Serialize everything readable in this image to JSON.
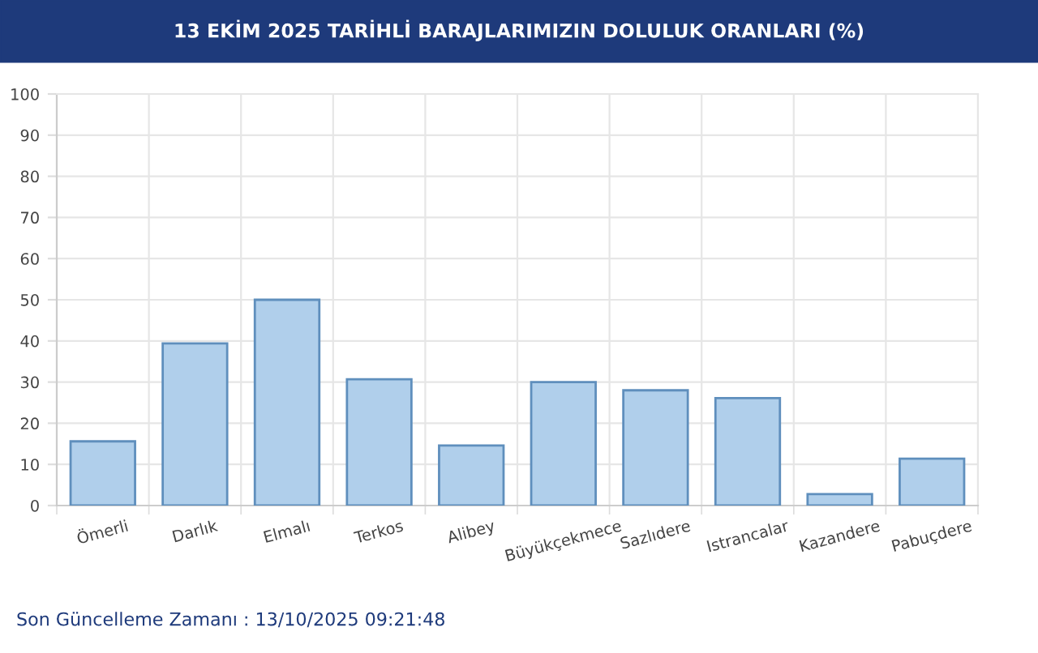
{
  "chart_data": {
    "type": "bar",
    "title": "13 EKİM 2025 TARİHLİ BARAJLARIMIZIN DOLULUK ORANLARI (%)",
    "categories": [
      "Ömerli",
      "Darlık",
      "Elmalı",
      "Terkos",
      "Alibey",
      "Büyükçekmece",
      "Sazlıdere",
      "Istrancalar",
      "Kazandere",
      "Pabuçdere"
    ],
    "values": [
      15.6,
      39.4,
      50.0,
      30.7,
      14.6,
      30.0,
      28.0,
      26.1,
      2.8,
      11.4
    ],
    "color": "#b0cfeb",
    "ylim": [
      0,
      100
    ],
    "yticks": [
      0,
      10,
      20,
      30,
      40,
      50,
      60,
      70,
      80,
      90,
      100
    ],
    "grid": true,
    "annotations": [
      "Son Güncelleme Zamanı : 13/10/2025 09:21:48"
    ]
  }
}
